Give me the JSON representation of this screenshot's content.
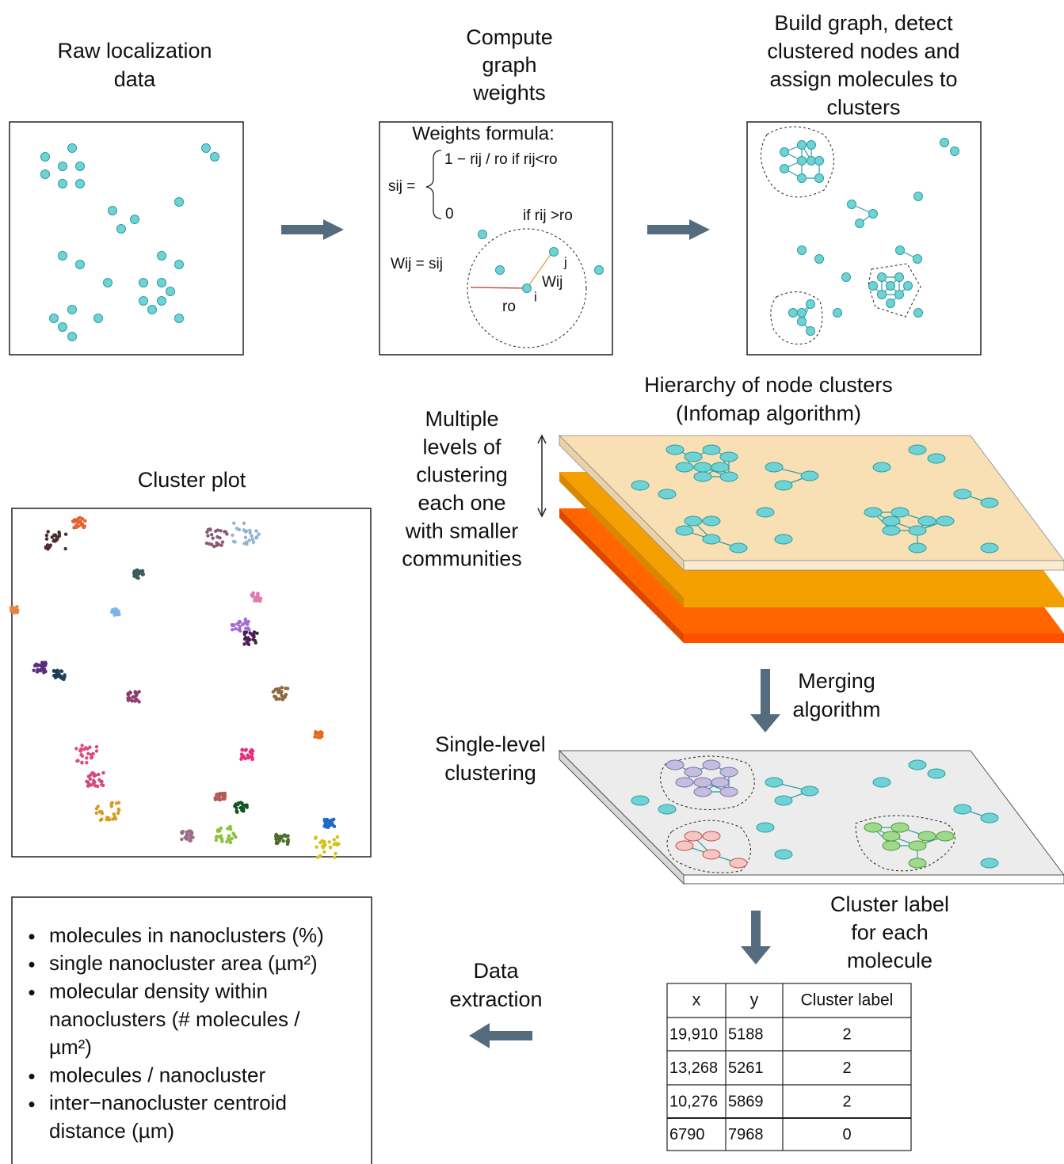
{
  "steps": [
    {
      "lines": [
        "Raw localization",
        "data"
      ]
    },
    {
      "lines": [
        "Compute",
        "graph",
        "weights"
      ]
    },
    {
      "lines": [
        "Build graph, detect",
        "clustered nodes and",
        "assign molecules to",
        "clusters"
      ]
    }
  ],
  "formula": {
    "title": "Weights formula:",
    "lhs": "sij =",
    "case1": "1 − rij / ro  if rij<ro",
    "case2_value": "0",
    "case2_condition": "if rij >ro",
    "weight": "Wij = sij",
    "radius_label": "ro",
    "node_i": "i",
    "node_j": "j",
    "edge_label": "Wij"
  },
  "hierarchy": {
    "lines": [
      "Hierarchy of node clusters",
      "(Infomap algorithm)"
    ]
  },
  "levels_note": {
    "lines": [
      "Multiple",
      "levels of",
      "clustering",
      "each one",
      "with smaller",
      "communities"
    ]
  },
  "cluster_plot": {
    "title": "Cluster plot"
  },
  "merging": {
    "lines": [
      "Merging",
      "algorithm"
    ]
  },
  "single_level": {
    "lines": [
      "Single-level",
      "clustering"
    ]
  },
  "cluster_label": {
    "lines": [
      "Cluster label",
      "for each",
      "molecule"
    ]
  },
  "data_extraction": {
    "lines": [
      "Data",
      "extraction"
    ]
  },
  "table": {
    "header": [
      "x",
      "y",
      "Cluster label"
    ],
    "rows": [
      [
        "19,910",
        "5188",
        "2"
      ],
      [
        "13,268",
        "5261",
        "2"
      ],
      [
        "10,276",
        "5869",
        "2"
      ],
      [
        "6790",
        "7968",
        "0"
      ]
    ]
  },
  "bullets": [
    {
      "lines": [
        "molecules in nanoclusters (%)"
      ]
    },
    {
      "lines": [
        "single nanocluster area  (µm²)"
      ]
    },
    {
      "lines": [
        "molecular density within",
        "nanoclusters (# molecules /",
        "µm²)"
      ]
    },
    {
      "lines": [
        "molecules / nanocluster"
      ]
    },
    {
      "lines": [
        "inter−nanocluster centroid",
        "distance (µm)"
      ]
    }
  ]
}
